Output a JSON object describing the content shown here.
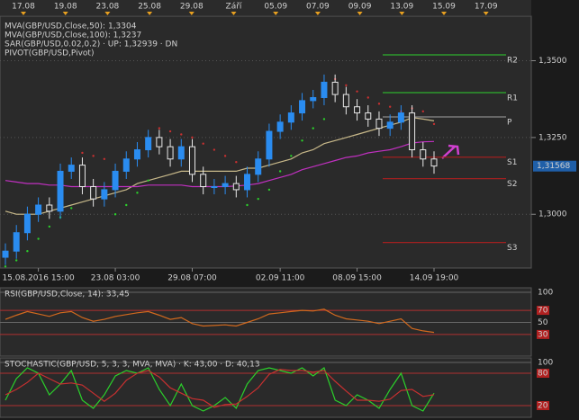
{
  "chart_data": [
    {
      "type": "candlestick",
      "top_labels": [
        "17.08",
        "19.08",
        "23.08",
        "25.08",
        "29.08",
        "Září",
        "05.09",
        "07.09",
        "09.09",
        "13.09",
        "15.09",
        "17.09"
      ],
      "categories": [
        null,
        null,
        null,
        "15.08.2016 15:00",
        null,
        null,
        null,
        null,
        null,
        null,
        "23.08 03:00",
        null,
        null,
        null,
        null,
        null,
        null,
        "29.08 07:00",
        null,
        null,
        null,
        null,
        null,
        null,
        null,
        "02.09 11:00",
        null,
        null,
        null,
        null,
        null,
        null,
        "08.09 15:00",
        null,
        null,
        null,
        null,
        null,
        null,
        "14.09 19:00"
      ],
      "open": [
        1.286,
        1.288,
        1.294,
        1.3,
        1.303,
        1.301,
        1.314,
        1.316,
        1.309,
        1.305,
        1.308,
        1.314,
        1.318,
        1.321,
        1.325,
        1.322,
        1.318,
        1.322,
        1.313,
        1.309,
        1.309,
        1.31,
        1.308,
        1.313,
        1.318,
        1.327,
        1.33,
        1.333,
        1.337,
        1.338,
        1.343,
        1.339,
        1.335,
        1.333,
        1.331,
        1.328,
        1.33,
        1.333,
        1.321,
        1.318
      ],
      "high": [
        1.2905,
        1.2965,
        1.3025,
        1.3055,
        1.3055,
        1.3165,
        1.3185,
        1.3185,
        1.3115,
        1.3105,
        1.3165,
        1.3205,
        1.3235,
        1.3275,
        1.3275,
        1.3245,
        1.3245,
        1.3245,
        1.3155,
        1.3115,
        1.3125,
        1.3125,
        1.3155,
        1.3205,
        1.3295,
        1.3325,
        1.3355,
        1.3395,
        1.3405,
        1.3455,
        1.3455,
        1.3415,
        1.3375,
        1.3355,
        1.3335,
        1.3325,
        1.3355,
        1.3355,
        1.3235,
        1.3205
      ],
      "low": [
        1.2835,
        1.2855,
        1.2915,
        1.2975,
        1.2985,
        1.2985,
        1.3115,
        1.3065,
        1.3025,
        1.3025,
        1.3055,
        1.3115,
        1.3155,
        1.3185,
        1.3195,
        1.3155,
        1.3155,
        1.3105,
        1.3065,
        1.3065,
        1.3065,
        1.3055,
        1.3055,
        1.3105,
        1.3155,
        1.3245,
        1.3275,
        1.3305,
        1.3345,
        1.3355,
        1.3365,
        1.3325,
        1.3305,
        1.3285,
        1.3255,
        1.3255,
        1.3275,
        1.3185,
        1.3155,
        1.3132
      ],
      "close": [
        1.288,
        1.294,
        1.3,
        1.303,
        1.301,
        1.314,
        1.316,
        1.309,
        1.305,
        1.308,
        1.314,
        1.318,
        1.321,
        1.325,
        1.322,
        1.318,
        1.322,
        1.313,
        1.309,
        1.309,
        1.31,
        1.308,
        1.313,
        1.318,
        1.327,
        1.33,
        1.333,
        1.337,
        1.338,
        1.343,
        1.339,
        1.335,
        1.333,
        1.331,
        1.328,
        1.33,
        1.333,
        1.321,
        1.318,
        1.3157
      ],
      "up_color": "#2a8cf0",
      "down_color": "#e8e8e8",
      "ylim": [
        1.2825,
        1.3645
      ],
      "yticks": [
        {
          "value": 1.35,
          "label": "1,3500"
        },
        {
          "value": 1.325,
          "label": "1,3250"
        },
        {
          "value": 1.3,
          "label": "1,3000"
        }
      ],
      "grid": true,
      "last_price": {
        "value": 1.31568,
        "label": "1,31568"
      },
      "series": [
        {
          "name": "MVA(GBP/USD,Close,50): 1,3304",
          "color": "#c8b98a",
          "values": [
            1.301,
            1.3,
            1.3,
            1.3,
            1.301,
            1.302,
            1.303,
            1.304,
            1.305,
            1.306,
            1.307,
            1.308,
            1.31,
            1.311,
            1.312,
            1.313,
            1.314,
            1.314,
            1.314,
            1.314,
            1.314,
            1.314,
            1.315,
            1.315,
            1.316,
            1.317,
            1.318,
            1.32,
            1.321,
            1.323,
            1.324,
            1.325,
            1.326,
            1.327,
            1.328,
            1.329,
            1.33,
            1.3315,
            1.331,
            1.3304
          ]
        },
        {
          "name": "MVA(GBP/USD,Close,100): 1,3237",
          "color": "#c030c0",
          "values": [
            1.311,
            1.3105,
            1.31,
            1.31,
            1.3095,
            1.3095,
            1.309,
            1.309,
            1.309,
            1.309,
            1.309,
            1.309,
            1.309,
            1.3095,
            1.3095,
            1.3095,
            1.3095,
            1.309,
            1.309,
            1.309,
            1.309,
            1.3092,
            1.3095,
            1.31,
            1.311,
            1.312,
            1.313,
            1.3145,
            1.3155,
            1.3165,
            1.3175,
            1.3185,
            1.319,
            1.32,
            1.3205,
            1.321,
            1.322,
            1.3232,
            1.3236,
            1.3237
          ]
        }
      ],
      "sar": {
        "name": "SAR(GBP/USD,0.02,0.2) · UP: 1,32939 · DN",
        "values": [
          1.283,
          1.285,
          1.288,
          1.292,
          1.296,
          1.299,
          1.302,
          1.32,
          1.319,
          1.318,
          1.3,
          1.303,
          1.307,
          1.311,
          1.328,
          1.327,
          1.326,
          1.325,
          1.323,
          1.321,
          1.319,
          1.317,
          1.303,
          1.305,
          1.308,
          1.314,
          1.319,
          1.324,
          1.328,
          1.331,
          1.344,
          1.342,
          1.34,
          1.338,
          1.336,
          1.335,
          1.3335,
          1.3345,
          1.3335,
          1.32939
        ],
        "colors": [
          "#2bd02b",
          "#2bd02b",
          "#2bd02b",
          "#2bd02b",
          "#2bd02b",
          "#2bd02b",
          "#2bd02b",
          "#c83030",
          "#c83030",
          "#c83030",
          "#2bd02b",
          "#2bd02b",
          "#2bd02b",
          "#2bd02b",
          "#c83030",
          "#c83030",
          "#c83030",
          "#c83030",
          "#c83030",
          "#c83030",
          "#c83030",
          "#c83030",
          "#2bd02b",
          "#2bd02b",
          "#2bd02b",
          "#2bd02b",
          "#2bd02b",
          "#2bd02b",
          "#2bd02b",
          "#2bd02b",
          "#c83030",
          "#c83030",
          "#c83030",
          "#c83030",
          "#c83030",
          "#c83030",
          "#c83030",
          "#c83030",
          "#c83030",
          "#c83030"
        ]
      },
      "pivot": {
        "name": "PIVOT(GBP/USD,Pivot)",
        "levels": [
          {
            "label": "R2",
            "value": 1.3519,
            "color": "#2fb02f"
          },
          {
            "label": "R1",
            "value": 1.3396,
            "color": "#2fb02f"
          },
          {
            "label": "P",
            "value": 1.3317,
            "color": "#8a8a8a"
          },
          {
            "label": "S1",
            "value": 1.3186,
            "color": "#a02020"
          },
          {
            "label": "S2",
            "value": 1.3116,
            "color": "#a02020"
          },
          {
            "label": "S3",
            "value": 1.2908,
            "color": "#a02020"
          }
        ]
      }
    },
    {
      "type": "line",
      "title": "RSI(GBP/USD,Close, 14): 33,45",
      "color": "#d2691e",
      "values": [
        55,
        62,
        68,
        64,
        60,
        66,
        68,
        58,
        52,
        55,
        60,
        63,
        66,
        68,
        62,
        55,
        58,
        48,
        44,
        45,
        46,
        44,
        50,
        56,
        64,
        66,
        68,
        70,
        69,
        72,
        62,
        56,
        54,
        52,
        48,
        52,
        56,
        40,
        36,
        33.45
      ],
      "ylim": [
        0,
        100
      ],
      "yticks": [
        100,
        70,
        50,
        30
      ],
      "ytick_boxes": [
        false,
        true,
        false,
        true
      ]
    },
    {
      "type": "line",
      "title": "STOCHASTIC(GBP/USD, 5, 3, 3, MVA, MVA) · K: 43,00 · D: 40,13",
      "series": [
        {
          "color": "#2bd02b",
          "values": [
            30,
            70,
            90,
            80,
            40,
            60,
            85,
            30,
            15,
            40,
            75,
            85,
            80,
            90,
            50,
            20,
            60,
            20,
            10,
            20,
            35,
            15,
            60,
            85,
            90,
            85,
            80,
            90,
            75,
            90,
            30,
            20,
            40,
            30,
            15,
            50,
            80,
            20,
            10,
            43
          ]
        },
        {
          "color": "#c83030",
          "values": [
            40,
            50,
            63,
            80,
            70,
            60,
            62,
            58,
            43,
            28,
            43,
            67,
            80,
            85,
            73,
            53,
            43,
            33,
            30,
            17,
            22,
            23,
            37,
            53,
            78,
            87,
            85,
            85,
            82,
            85,
            65,
            47,
            30,
            30,
            28,
            32,
            48,
            50,
            37,
            40.13
          ]
        }
      ],
      "ylim": [
        0,
        100
      ],
      "yticks": [
        100,
        80,
        20
      ],
      "ytick_boxes": [
        false,
        true,
        true
      ]
    }
  ]
}
